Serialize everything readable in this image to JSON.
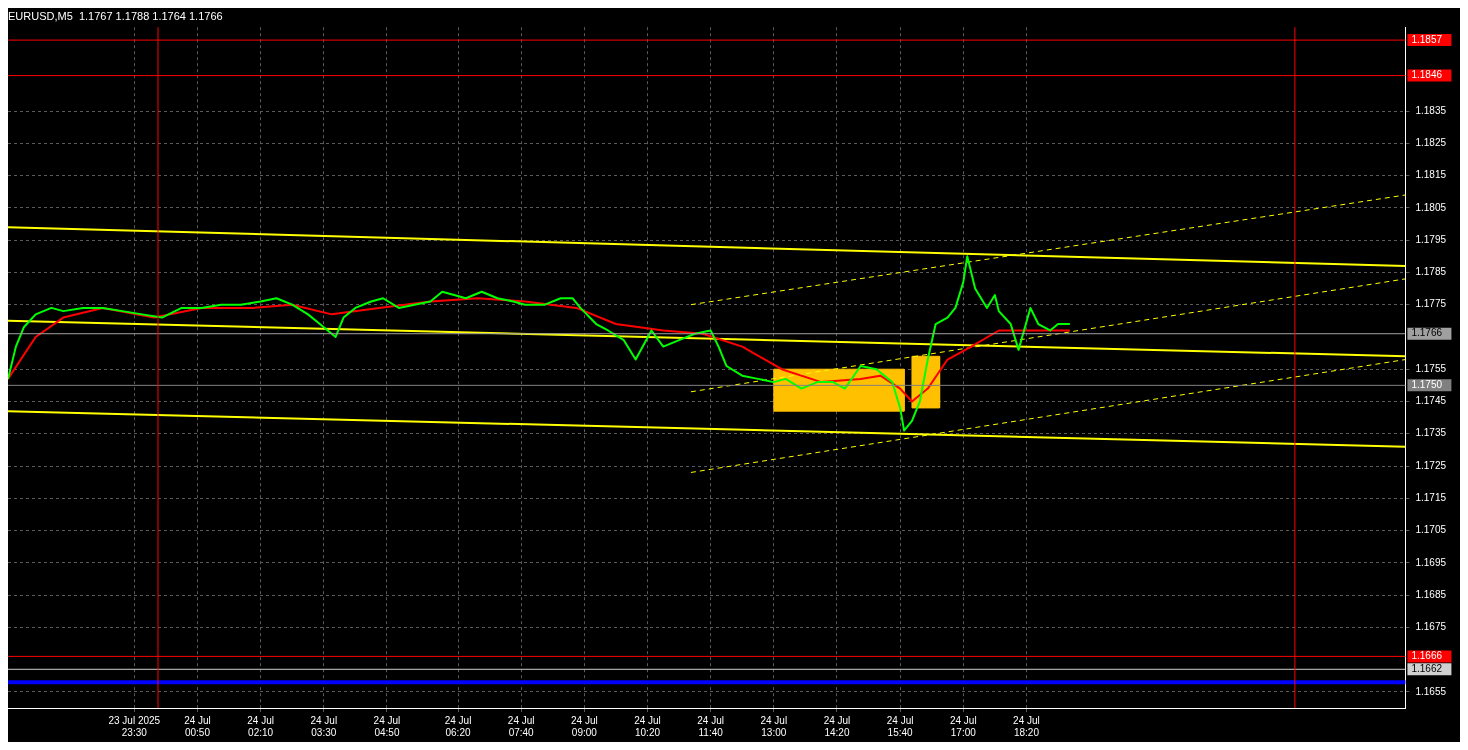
{
  "chart_data": {
    "type": "line",
    "title": "EURUSD,M5  1.1767 1.1788 1.1764 1.1766",
    "legend": false,
    "grid": true,
    "marker": "none",
    "xlim": [
      "2025-07-23T20:50",
      "2025-07-25T02:20"
    ],
    "ylim": [
      1.165,
      1.1861
    ],
    "xticks": [
      {
        "value": "2025-07-23T23:30",
        "label": "23 Jul 2025 23:30"
      },
      {
        "value": "2025-07-24T00:50",
        "label": "24 Jul 00:50"
      },
      {
        "value": "2025-07-24T02:10",
        "label": "24 Jul 02:10"
      },
      {
        "value": "2025-07-24T03:30",
        "label": "24 Jul 03:30"
      },
      {
        "value": "2025-07-24T04:50",
        "label": "24 Jul 04:50"
      },
      {
        "value": "2025-07-24T06:20",
        "label": "24 Jul 06:20"
      },
      {
        "value": "2025-07-24T07:40",
        "label": "24 Jul 07:40"
      },
      {
        "value": "2025-07-24T09:00",
        "label": "24 Jul 09:00"
      },
      {
        "value": "2025-07-24T10:20",
        "label": "24 Jul 10:20"
      },
      {
        "value": "2025-07-24T11:40",
        "label": "24 Jul 11:40"
      },
      {
        "value": "2025-07-24T13:00",
        "label": "24 Jul 13:00"
      },
      {
        "value": "2025-07-24T14:20",
        "label": "24 Jul 14:20"
      },
      {
        "value": "2025-07-24T15:40",
        "label": "24 Jul 15:40"
      },
      {
        "value": "2025-07-24T17:00",
        "label": "24 Jul 17:00"
      },
      {
        "value": "2025-07-24T18:20",
        "label": "24 Jul 18:20"
      }
    ],
    "yticks": [
      1.1655,
      1.1675,
      1.1685,
      1.1695,
      1.1705,
      1.1715,
      1.1725,
      1.1735,
      1.1745,
      1.1755,
      1.1775,
      1.1785,
      1.1795,
      1.1805,
      1.1815,
      1.1825,
      1.1835
    ],
    "series": [
      {
        "type": "line",
        "color": "#00ff00",
        "x": [
          "2025-07-23T20:50",
          "2025-07-23T21:00",
          "2025-07-23T21:10",
          "2025-07-23T21:25",
          "2025-07-23T21:45",
          "2025-07-23T22:00",
          "2025-07-23T22:25",
          "2025-07-23T22:50",
          "2025-07-23T23:15",
          "2025-07-23T23:40",
          "2025-07-24T00:05",
          "2025-07-24T00:30",
          "2025-07-24T00:55",
          "2025-07-24T01:20",
          "2025-07-24T01:45",
          "2025-07-24T02:10",
          "2025-07-24T02:30",
          "2025-07-24T02:50",
          "2025-07-24T03:10",
          "2025-07-24T03:25",
          "2025-07-24T03:45",
          "2025-07-24T03:55",
          "2025-07-24T04:10",
          "2025-07-24T04:30",
          "2025-07-24T04:45",
          "2025-07-24T05:05",
          "2025-07-24T05:25",
          "2025-07-24T05:45",
          "2025-07-24T06:00",
          "2025-07-24T06:30",
          "2025-07-24T06:50",
          "2025-07-24T07:10",
          "2025-07-24T07:30",
          "2025-07-24T07:45",
          "2025-07-24T08:10",
          "2025-07-24T08:30",
          "2025-07-24T08:45",
          "2025-07-24T08:55",
          "2025-07-24T09:15",
          "2025-07-24T09:30",
          "2025-07-24T09:50",
          "2025-07-24T10:05",
          "2025-07-24T10:25",
          "2025-07-24T10:40",
          "2025-07-24T11:00",
          "2025-07-24T11:20",
          "2025-07-24T11:40",
          "2025-07-24T11:50",
          "2025-07-24T12:00",
          "2025-07-24T12:20",
          "2025-07-24T12:40",
          "2025-07-24T13:00",
          "2025-07-24T13:15",
          "2025-07-24T13:35",
          "2025-07-24T13:55",
          "2025-07-24T14:15",
          "2025-07-24T14:30",
          "2025-07-24T14:50",
          "2025-07-24T15:10",
          "2025-07-24T15:30",
          "2025-07-24T15:40",
          "2025-07-24T15:45",
          "2025-07-24T15:55",
          "2025-07-24T16:05",
          "2025-07-24T16:15",
          "2025-07-24T16:25",
          "2025-07-24T16:40",
          "2025-07-24T16:50",
          "2025-07-24T17:00",
          "2025-07-24T17:05",
          "2025-07-24T17:15",
          "2025-07-24T17:30",
          "2025-07-24T17:40",
          "2025-07-24T17:45",
          "2025-07-24T18:00",
          "2025-07-24T18:10",
          "2025-07-24T18:25",
          "2025-07-24T18:35",
          "2025-07-24T18:50",
          "2025-07-24T19:00",
          "2025-07-24T19:15"
        ],
        "values": [
          1.1752,
          1.1762,
          1.1768,
          1.1772,
          1.1774,
          1.1773,
          1.1774,
          1.1774,
          1.1773,
          1.1772,
          1.1771,
          1.1774,
          1.1774,
          1.1775,
          1.1775,
          1.1776,
          1.1777,
          1.1775,
          1.1772,
          1.1769,
          1.1765,
          1.1771,
          1.1774,
          1.1776,
          1.1777,
          1.1774,
          1.1775,
          1.1776,
          1.1779,
          1.1777,
          1.1779,
          1.1777,
          1.1776,
          1.1775,
          1.1775,
          1.1777,
          1.1777,
          1.1774,
          1.1769,
          1.1767,
          1.1764,
          1.1758,
          1.1767,
          1.1762,
          1.1764,
          1.1766,
          1.1767,
          1.1762,
          1.1756,
          1.1753,
          1.1752,
          1.1751,
          1.1752,
          1.1749,
          1.1751,
          1.1751,
          1.1749,
          1.1756,
          1.1755,
          1.1751,
          1.1743,
          1.1736,
          1.1739,
          1.1745,
          1.1758,
          1.1769,
          1.1771,
          1.1774,
          1.1782,
          1.179,
          1.178,
          1.1774,
          1.1778,
          1.1773,
          1.1769,
          1.1761,
          1.1774,
          1.1769,
          1.1767,
          1.1769,
          1.1769
        ]
      },
      {
        "type": "line",
        "color": "#ff0000",
        "x": [
          "2025-07-23T20:50",
          "2025-07-23T21:25",
          "2025-07-23T22:00",
          "2025-07-23T22:50",
          "2025-07-23T23:55",
          "2025-07-24T00:55",
          "2025-07-24T02:00",
          "2025-07-24T02:50",
          "2025-07-24T03:40",
          "2025-07-24T04:40",
          "2025-07-24T05:45",
          "2025-07-24T06:45",
          "2025-07-24T07:45",
          "2025-07-24T08:50",
          "2025-07-24T09:40",
          "2025-07-24T10:40",
          "2025-07-24T11:30",
          "2025-07-24T12:20",
          "2025-07-24T13:10",
          "2025-07-24T14:00",
          "2025-07-24T14:50",
          "2025-07-24T15:15",
          "2025-07-24T15:40",
          "2025-07-24T15:55",
          "2025-07-24T16:15",
          "2025-07-24T16:40",
          "2025-07-24T17:10",
          "2025-07-24T17:45",
          "2025-07-24T18:10",
          "2025-07-24T18:50",
          "2025-07-24T19:15"
        ],
        "values": [
          1.1752,
          1.1765,
          1.1771,
          1.1774,
          1.1771,
          1.1774,
          1.1774,
          1.1775,
          1.1772,
          1.1774,
          1.1776,
          1.1777,
          1.1776,
          1.1774,
          1.1769,
          1.1767,
          1.1766,
          1.1762,
          1.1755,
          1.1751,
          1.1752,
          1.1753,
          1.1749,
          1.1745,
          1.1749,
          1.1758,
          1.1762,
          1.1767,
          1.1767,
          1.1767,
          1.1767
        ]
      },
      {
        "type": "line",
        "color": "#ffff00",
        "x": [
          "2025-07-23T20:50",
          "2025-07-25T02:20"
        ],
        "values": [
          1.1799,
          1.1787
        ]
      },
      {
        "type": "line",
        "color": "#ffff00",
        "x": [
          "2025-07-23T20:50",
          "2025-07-25T02:20"
        ],
        "values": [
          1.177,
          1.1759
        ]
      },
      {
        "type": "line",
        "color": "#ffff00",
        "x": [
          "2025-07-23T20:50",
          "2025-07-25T02:20"
        ],
        "values": [
          1.1742,
          1.1731
        ]
      },
      {
        "type": "line",
        "color": "#ffff00",
        "line_style": "dashed",
        "x": [
          "2025-07-24T11:15",
          "2025-07-25T02:20"
        ],
        "values": [
          1.1775,
          1.1809
        ]
      },
      {
        "type": "line",
        "color": "#ffff00",
        "line_style": "dashed",
        "x": [
          "2025-07-24T11:15",
          "2025-07-25T02:20"
        ],
        "values": [
          1.1748,
          1.1783
        ]
      },
      {
        "type": "line",
        "color": "#ffff00",
        "line_style": "dashed",
        "x": [
          "2025-07-24T11:15",
          "2025-07-25T02:20"
        ],
        "values": [
          1.1723,
          1.1758
        ]
      },
      {
        "type": "area",
        "color": "#ffc000",
        "x": [
          "2025-07-24T13:00",
          "2025-07-24T13:00",
          "2025-07-24T15:45",
          "2025-07-24T15:45",
          "2025-07-24T13:00"
        ],
        "values": [
          1.1742,
          1.1755,
          1.1755,
          1.1742,
          1.1742
        ]
      },
      {
        "type": "area",
        "color": "#ffc000",
        "x": [
          "2025-07-24T15:55",
          "2025-07-24T15:55",
          "2025-07-24T16:30",
          "2025-07-24T16:30",
          "2025-07-24T15:55"
        ],
        "values": [
          1.1743,
          1.1759,
          1.1759,
          1.1743,
          1.1743
        ]
      }
    ],
    "ref_lines": [
      {
        "axis": "y",
        "value": 1.1857,
        "label": "1.1857",
        "color": "#ff0000"
      },
      {
        "axis": "y",
        "value": 1.1846,
        "label": "1.1846",
        "color": "#ff0000"
      },
      {
        "axis": "y",
        "value": 1.1766,
        "label": "1.1766",
        "color": "#a0a0a0"
      },
      {
        "axis": "y",
        "value": 1.175,
        "label": "1.1750",
        "color": "#808080"
      },
      {
        "axis": "y",
        "value": 1.1666,
        "label": "1.1666",
        "color": "#ff0000"
      },
      {
        "axis": "y",
        "value": 1.1662,
        "label": "1.1662",
        "color": "#d0d0d0"
      },
      {
        "axis": "y",
        "value": 1.1658,
        "label": null,
        "color": "#0000ff"
      },
      {
        "axis": "x",
        "value": "2025-07-24T00:00",
        "label": null,
        "color": "#ff0000"
      },
      {
        "axis": "x",
        "value": "2025-07-25T00:00",
        "label": null,
        "color": "#ff0000"
      }
    ]
  }
}
